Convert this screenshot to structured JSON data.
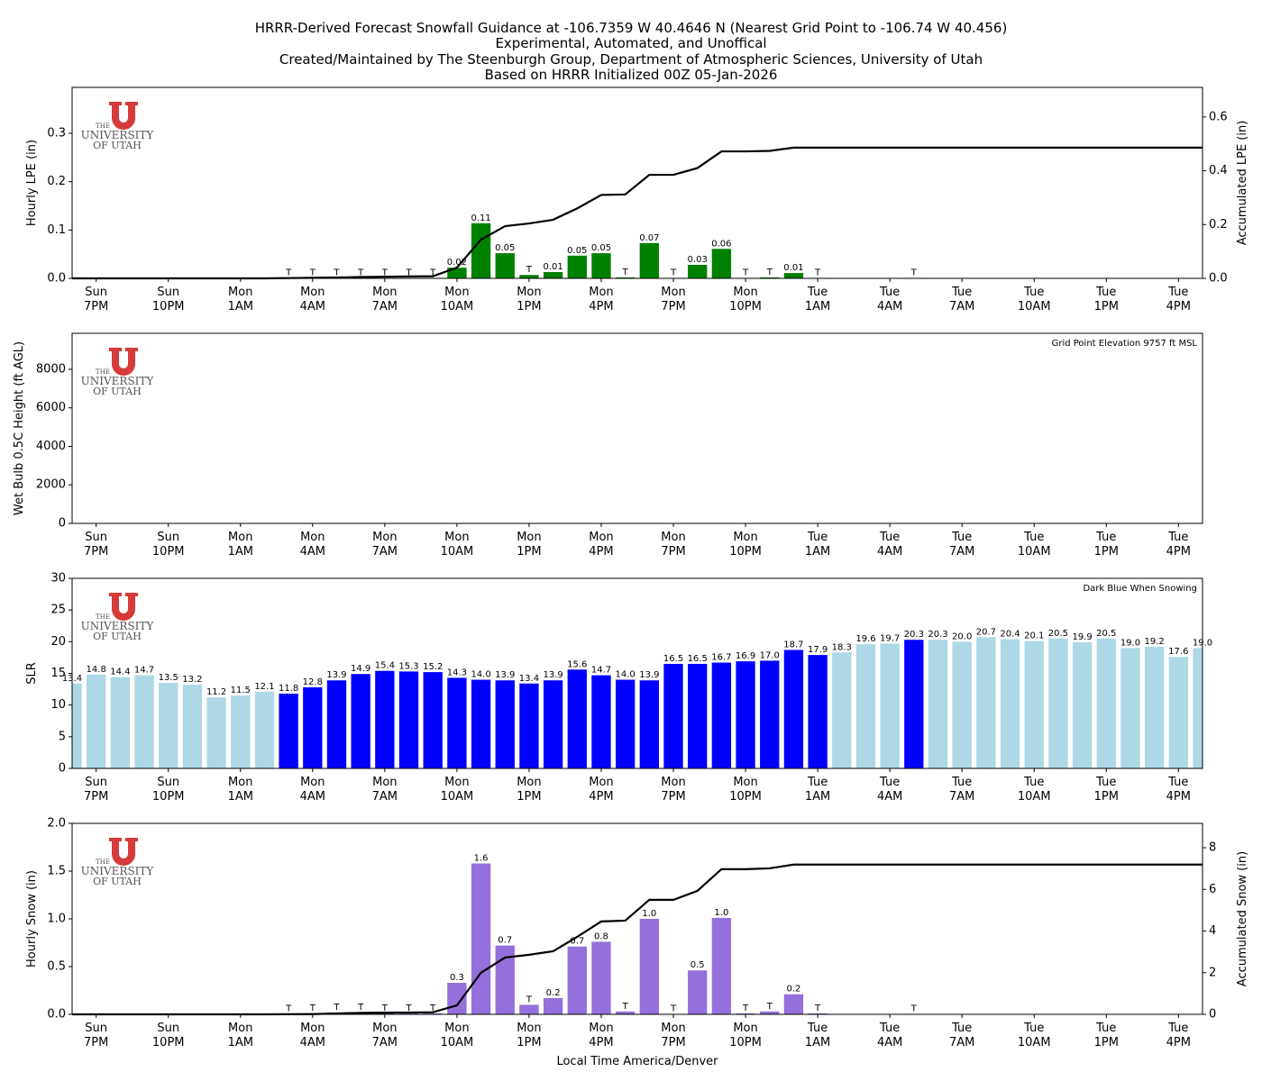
{
  "title": [
    "HRRR-Derived Forecast Snowfall Guidance at -106.7359 W 40.4646 N (Nearest Grid Point to -106.74 W 40.456)",
    "Experimental, Automated, and Unoffical",
    "Created/Maintained by The Steenburgh Group, Department of Atmospheric Sciences, University of Utah",
    "Based on HRRR Initialized 00Z 05-Jan-2026"
  ],
  "logo": {
    "line1": "THE",
    "line2": "UNIVERSITY",
    "line3": "OF UTAH"
  },
  "chart_data": [
    {
      "type": "bar",
      "ylabel": "Hourly LPE (in)",
      "y2label": "Accumulated LPE (in)",
      "categories": [
        null,
        "Sun\n7PM",
        null,
        null,
        "Sun\n10PM",
        null,
        null,
        "Mon\n1AM",
        null,
        null,
        "Mon\n4AM",
        null,
        null,
        "Mon\n7AM",
        null,
        null,
        "Mon\n10AM",
        null,
        null,
        "Mon\n1PM",
        null,
        null,
        "Mon\n4PM",
        null,
        null,
        "Mon\n7PM",
        null,
        null,
        "Mon\n10PM",
        null,
        null,
        "Tue\n1AM",
        null,
        null,
        "Tue\n4AM",
        null,
        null,
        "Tue\n7AM",
        null,
        null,
        "Tue\n10AM",
        null,
        null,
        "Tue\n1PM",
        null,
        null,
        "Tue\n4PM",
        null
      ],
      "ylim": [
        0,
        0.395
      ],
      "yticks": [
        {
          "value": 0,
          "label": "0.0"
        },
        {
          "value": 0.1,
          "label": "0.1"
        },
        {
          "value": 0.2,
          "label": "0.2"
        },
        {
          "value": 0.3,
          "label": "0.3"
        }
      ],
      "y2lim": [
        0,
        0.71
      ],
      "y2ticks": [
        {
          "value": 0,
          "label": "0.0"
        },
        {
          "value": 0.2,
          "label": "0.2"
        },
        {
          "value": 0.4,
          "label": "0.4"
        },
        {
          "value": 0.6,
          "label": "0.6"
        }
      ],
      "series": [
        {
          "type": "bar",
          "color": "#008000",
          "values": [
            0,
            0,
            0,
            0,
            0,
            0,
            0,
            0,
            0,
            0.001,
            0.001,
            0.001,
            0.001,
            0.001,
            0.001,
            0.001,
            0.022,
            0.114,
            0.052,
            0.007,
            0.013,
            0.047,
            0.052,
            0.002,
            0.073,
            0.001,
            0.028,
            0.061,
            0.001,
            0.002,
            0.011,
            0.001,
            0,
            0,
            0,
            0.001,
            0,
            0,
            0,
            0,
            0,
            0,
            0,
            0,
            0,
            0,
            0,
            0
          ],
          "value_labels": [
            null,
            null,
            null,
            null,
            null,
            null,
            null,
            null,
            null,
            "T",
            "T",
            "T",
            "T",
            "T",
            "T",
            "T",
            "0.02",
            "0.11",
            "0.05",
            "T",
            "0.01",
            "0.05",
            "0.05",
            "T",
            "0.07",
            "T",
            "0.03",
            "0.06",
            "T",
            "T",
            "0.01",
            "T",
            null,
            null,
            null,
            "T",
            null,
            null,
            null,
            null,
            null,
            null,
            null,
            null,
            null,
            null,
            null,
            null
          ]
        },
        {
          "type": "line",
          "color": "#000000",
          "axis": "y2",
          "values": [
            0,
            0,
            0,
            0,
            0,
            0,
            0,
            0,
            0,
            0.001,
            0.002,
            0.003,
            0.005,
            0.006,
            0.007,
            0.008,
            0.04,
            0.144,
            0.194,
            0.204,
            0.218,
            0.26,
            0.31,
            0.312,
            0.385,
            0.385,
            0.41,
            0.472,
            0.472,
            0.474,
            0.486,
            0.486,
            0.486,
            0.486,
            0.486,
            0.486,
            0.486,
            0.486,
            0.486,
            0.486,
            0.486,
            0.486,
            0.486,
            0.486,
            0.486,
            0.486,
            0.486,
            0.486
          ]
        }
      ]
    },
    {
      "type": "bar",
      "ylabel": "Wet Bulb 0.5C Height (ft AGL)",
      "annotation": "Grid Point Elevation 9757 ft MSL",
      "categories": [
        null,
        "Sun\n7PM",
        null,
        null,
        "Sun\n10PM",
        null,
        null,
        "Mon\n1AM",
        null,
        null,
        "Mon\n4AM",
        null,
        null,
        "Mon\n7AM",
        null,
        null,
        "Mon\n10AM",
        null,
        null,
        "Mon\n1PM",
        null,
        null,
        "Mon\n4PM",
        null,
        null,
        "Mon\n7PM",
        null,
        null,
        "Mon\n10PM",
        null,
        null,
        "Tue\n1AM",
        null,
        null,
        "Tue\n4AM",
        null,
        null,
        "Tue\n7AM",
        null,
        null,
        "Tue\n10AM",
        null,
        null,
        "Tue\n1PM",
        null,
        null,
        "Tue\n4PM",
        null
      ],
      "ylim": [
        0,
        9870
      ],
      "yticks": [
        0,
        2000,
        4000,
        6000,
        8000
      ]
    },
    {
      "type": "bar",
      "ylabel": "SLR",
      "annotation": "Dark Blue When Snowing",
      "categories": [
        null,
        "Sun\n7PM",
        null,
        null,
        "Sun\n10PM",
        null,
        null,
        "Mon\n1AM",
        null,
        null,
        "Mon\n4AM",
        null,
        null,
        "Mon\n7AM",
        null,
        null,
        "Mon\n10AM",
        null,
        null,
        "Mon\n1PM",
        null,
        null,
        "Mon\n4PM",
        null,
        null,
        "Mon\n7PM",
        null,
        null,
        "Mon\n10PM",
        null,
        null,
        "Tue\n1AM",
        null,
        null,
        "Tue\n4AM",
        null,
        null,
        "Tue\n7AM",
        null,
        null,
        "Tue\n10AM",
        null,
        null,
        "Tue\n1PM",
        null,
        null,
        "Tue\n4PM",
        null
      ],
      "ylim": [
        0,
        30
      ],
      "yticks": [
        0,
        5,
        10,
        15,
        20,
        25,
        30
      ],
      "series": [
        {
          "type": "bar",
          "values": [
            13.4,
            14.8,
            14.4,
            14.7,
            13.5,
            13.2,
            11.2,
            11.5,
            12.1,
            11.8,
            12.8,
            13.9,
            14.9,
            15.4,
            15.3,
            15.2,
            14.3,
            14.0,
            13.9,
            13.4,
            13.9,
            15.6,
            14.7,
            14.0,
            13.9,
            16.5,
            16.5,
            16.7,
            16.9,
            17.0,
            18.7,
            17.9,
            18.3,
            19.6,
            19.7,
            20.3,
            20.3,
            20.0,
            20.7,
            20.4,
            20.1,
            20.5,
            19.9,
            20.5,
            19.0,
            19.2,
            17.6,
            19.0
          ],
          "value_labels": [
            "13.4",
            "14.8",
            "14.4",
            "14.7",
            "13.5",
            "13.2",
            "11.2",
            "11.5",
            "12.1",
            "11.8",
            "12.8",
            "13.9",
            "14.9",
            "15.4",
            "15.3",
            "15.2",
            "14.3",
            "14.0",
            "13.9",
            "13.4",
            "13.9",
            "15.6",
            "14.7",
            "14.0",
            "13.9",
            "16.5",
            "16.5",
            "16.7",
            "16.9",
            "17.0",
            "18.7",
            "17.9",
            "18.3",
            "19.6",
            "19.7",
            "20.3",
            "20.3",
            "20.0",
            "20.7",
            "20.4",
            "20.1",
            "20.5",
            "19.9",
            "20.5",
            "19.0",
            "19.2",
            "17.6",
            "19.0"
          ],
          "colors": [
            "#add8e6",
            "#add8e6",
            "#add8e6",
            "#add8e6",
            "#add8e6",
            "#add8e6",
            "#add8e6",
            "#add8e6",
            "#add8e6",
            "#0000ff",
            "#0000ff",
            "#0000ff",
            "#0000ff",
            "#0000ff",
            "#0000ff",
            "#0000ff",
            "#0000ff",
            "#0000ff",
            "#0000ff",
            "#0000ff",
            "#0000ff",
            "#0000ff",
            "#0000ff",
            "#0000ff",
            "#0000ff",
            "#0000ff",
            "#0000ff",
            "#0000ff",
            "#0000ff",
            "#0000ff",
            "#0000ff",
            "#0000ff",
            "#add8e6",
            "#add8e6",
            "#add8e6",
            "#0000ff",
            "#add8e6",
            "#add8e6",
            "#add8e6",
            "#add8e6",
            "#add8e6",
            "#add8e6",
            "#add8e6",
            "#add8e6",
            "#add8e6",
            "#add8e6",
            "#add8e6",
            "#add8e6"
          ]
        }
      ]
    },
    {
      "type": "bar",
      "ylabel": "Hourly Snow (in)",
      "y2label": "Accumulated Snow (in)",
      "xlabel": "Local Time America/Denver",
      "categories": [
        null,
        "Sun\n7PM",
        null,
        null,
        "Sun\n10PM",
        null,
        null,
        "Mon\n1AM",
        null,
        null,
        "Mon\n4AM",
        null,
        null,
        "Mon\n7AM",
        null,
        null,
        "Mon\n10AM",
        null,
        null,
        "Mon\n1PM",
        null,
        null,
        "Mon\n4PM",
        null,
        null,
        "Mon\n7PM",
        null,
        null,
        "Mon\n10PM",
        null,
        null,
        "Tue\n1AM",
        null,
        null,
        "Tue\n4AM",
        null,
        null,
        "Tue\n7AM",
        null,
        null,
        "Tue\n10AM",
        null,
        null,
        "Tue\n1PM",
        null,
        null,
        "Tue\n4PM",
        null
      ],
      "ylim": [
        0,
        2.0
      ],
      "yticks": [
        {
          "value": 0,
          "label": "0.0"
        },
        {
          "value": 0.5,
          "label": "0.5"
        },
        {
          "value": 1.0,
          "label": "1.0"
        },
        {
          "value": 1.5,
          "label": "1.5"
        },
        {
          "value": 2.0,
          "label": "2.0"
        }
      ],
      "y2lim": [
        0,
        9.17
      ],
      "y2ticks": [
        0,
        2,
        4,
        6,
        8
      ],
      "series": [
        {
          "type": "bar",
          "color": "#9370db",
          "values": [
            0,
            0,
            0,
            0,
            0,
            0,
            0,
            0,
            0,
            0.005,
            0.01,
            0.02,
            0.02,
            0.01,
            0.01,
            0.01,
            0.33,
            1.58,
            0.72,
            0.1,
            0.17,
            0.71,
            0.76,
            0.03,
            1.0,
            0.005,
            0.46,
            1.01,
            0.01,
            0.03,
            0.21,
            0.01,
            0,
            0,
            0,
            0.005,
            0,
            0,
            0,
            0,
            0,
            0,
            0,
            0,
            0,
            0,
            0,
            0
          ],
          "value_labels": [
            null,
            null,
            null,
            null,
            null,
            null,
            null,
            null,
            null,
            "T",
            "T",
            "T",
            "T",
            "T",
            "T",
            "T",
            "0.3",
            "1.6",
            "0.7",
            "T",
            "0.2",
            "0.7",
            "0.8",
            "T",
            "1.0",
            "T",
            "0.5",
            "1.0",
            "T",
            "T",
            "0.2",
            "T",
            null,
            null,
            null,
            "T",
            null,
            null,
            null,
            null,
            null,
            null,
            null,
            null,
            null,
            null,
            null,
            null
          ]
        },
        {
          "type": "line",
          "color": "#000000",
          "axis": "y2",
          "values": [
            0,
            0,
            0,
            0,
            0,
            0,
            0,
            0,
            0,
            0.005,
            0.01,
            0.04,
            0.07,
            0.08,
            0.09,
            0.1,
            0.43,
            2.0,
            2.73,
            2.86,
            3.03,
            3.72,
            4.46,
            4.5,
            5.5,
            5.5,
            5.93,
            6.97,
            6.97,
            7.01,
            7.19,
            7.19,
            7.19,
            7.19,
            7.19,
            7.19,
            7.19,
            7.19,
            7.19,
            7.19,
            7.19,
            7.19,
            7.19,
            7.19,
            7.19,
            7.19,
            7.19,
            7.19
          ]
        }
      ]
    }
  ]
}
